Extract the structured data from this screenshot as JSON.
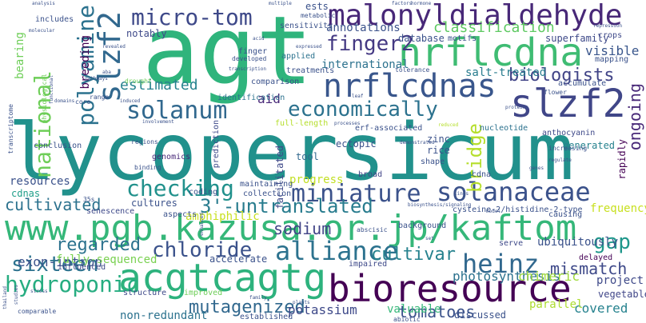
{
  "words": [
    {
      "text": "lycopersicum",
      "color": "#21918c"
    },
    {
      "text": "agt",
      "color": "#2fb47c"
    },
    {
      "text": "www.pgb.kazusa.or.jp/kaftom",
      "color": "#35b779"
    },
    {
      "text": "bioresource",
      "color": "#440154"
    },
    {
      "text": "malonyldialdehyde",
      "color": "#482878"
    },
    {
      "text": "nrflcdna",
      "color": "#3fbc73"
    },
    {
      "text": "acgtcagtg",
      "color": "#2db27d"
    },
    {
      "text": "nrflcdnas",
      "color": "#39568c"
    },
    {
      "text": "slzf2",
      "color": "#31688e"
    },
    {
      "text": "slzf2",
      "color": "#404688"
    },
    {
      "text": "miniature",
      "color": "#3b528b"
    },
    {
      "text": "solanaceae",
      "color": "#3b528b"
    },
    {
      "text": "solanum",
      "color": "#31688e"
    },
    {
      "text": "economically",
      "color": "#2c728e"
    },
    {
      "text": "checking",
      "color": "#21918c"
    },
    {
      "text": "heinz",
      "color": "#31688e"
    },
    {
      "text": "hydroponic",
      "color": "#27ad81"
    },
    {
      "text": "alliance",
      "color": "#2c728e"
    },
    {
      "text": "chloride",
      "color": "#3b528b"
    },
    {
      "text": "sixteen",
      "color": "#2c728e"
    },
    {
      "text": "micro-tom",
      "color": "#3e4989"
    },
    {
      "text": "finger2",
      "color": "#443983"
    },
    {
      "text": "polyamine",
      "color": "#2c728e"
    },
    {
      "text": "national",
      "color": "#6ece58"
    },
    {
      "text": "cultivated",
      "color": "#2c728e"
    },
    {
      "text": "3'-untranslated",
      "color": "#287c8e"
    },
    {
      "text": "mutagenized",
      "color": "#31688e"
    },
    {
      "text": "regarded",
      "color": "#2c728e"
    },
    {
      "text": "sodium",
      "color": "#414487"
    },
    {
      "text": "cultivar",
      "color": "#26828e"
    },
    {
      "text": "gap",
      "color": "#1f978b"
    },
    {
      "text": "mismatch",
      "color": "#3e4989"
    },
    {
      "text": "bridge",
      "color": "#b5de2b"
    },
    {
      "text": "ongoing",
      "color": "#482878"
    },
    {
      "text": "biologists",
      "color": "#414487"
    },
    {
      "text": "classification",
      "color": "#5ec962"
    },
    {
      "text": "annotations",
      "color": "#3b528b"
    },
    {
      "text": "estimated",
      "color": "#26828e"
    },
    {
      "text": "aid",
      "color": "#482878"
    },
    {
      "text": "exon-intron",
      "color": "#3b528b"
    },
    {
      "text": "tomatoes",
      "color": "#3b528b"
    },
    {
      "text": "potassium",
      "color": "#3e4989"
    },
    {
      "text": "covered",
      "color": "#26828e"
    },
    {
      "text": "progress",
      "color": "#c2df23"
    },
    {
      "text": "photosynthesis",
      "color": "#2c728e"
    },
    {
      "text": "chimeric",
      "color": "#9fda3a"
    },
    {
      "text": "project",
      "color": "#3e4989"
    },
    {
      "text": "vegetable",
      "color": "#404688"
    },
    {
      "text": "frequency",
      "color": "#c8e020"
    },
    {
      "text": "ubiquitously",
      "color": "#3b528b"
    },
    {
      "text": "fully-sequenced",
      "color": "#7ad151"
    },
    {
      "text": "non-redundant",
      "color": "#2c728e"
    },
    {
      "text": "valuable",
      "color": "#35b779"
    },
    {
      "text": "parallel",
      "color": "#addc30"
    },
    {
      "text": "accelerate",
      "color": "#3b528b"
    },
    {
      "text": "amphiphilic",
      "color": "#c8e020"
    },
    {
      "text": "cultures",
      "color": "#3b528b"
    },
    {
      "text": "resources",
      "color": "#3b528b"
    },
    {
      "text": "cdnas",
      "color": "#1f9e89"
    },
    {
      "text": "international",
      "color": "#2c728e"
    },
    {
      "text": "salt-treated",
      "color": "#287c8e"
    },
    {
      "text": "database",
      "color": "#3b528b"
    },
    {
      "text": "superfamily",
      "color": "#3e4989"
    },
    {
      "text": "visible",
      "color": "#39568c"
    },
    {
      "text": "breeding",
      "color": "#440154"
    },
    {
      "text": "bearing",
      "color": "#6ece58"
    },
    {
      "text": "notably",
      "color": "#3e4989"
    },
    {
      "text": "ests",
      "color": "#3b528b"
    },
    {
      "text": "tool",
      "color": "#31688e"
    },
    {
      "text": "cysteine-2/histidine-2-type",
      "color": "#3b528b"
    },
    {
      "text": "generated",
      "color": "#26828e"
    },
    {
      "text": "rapidly",
      "color": "#440154"
    },
    {
      "text": "facilitated",
      "color": "#3e4989"
    },
    {
      "text": "full-length",
      "color": "#b5de2b"
    },
    {
      "text": "erf-associated",
      "color": "#3b528b"
    },
    {
      "text": "nucleotide",
      "color": "#2c728e"
    },
    {
      "text": "anthocyanin",
      "color": "#3e4989"
    },
    {
      "text": "genomics",
      "color": "#482878"
    },
    {
      "text": "prediction",
      "color": "#3e4989"
    },
    {
      "text": "ectopic",
      "color": "#3b528b"
    },
    {
      "text": "zinc",
      "color": "#3b528b"
    },
    {
      "text": "rice",
      "color": "#3b528b"
    },
    {
      "text": "shape",
      "color": "#3b528b"
    },
    {
      "text": "broad",
      "color": "#414487"
    },
    {
      "text": "coding",
      "color": "#3b528b"
    },
    {
      "text": "aspects",
      "color": "#3b528b"
    },
    {
      "text": "senescence",
      "color": "#3e4989"
    },
    {
      "text": "maintaining",
      "color": "#3b528b"
    },
    {
      "text": "collection",
      "color": "#3b528b"
    },
    {
      "text": "structure",
      "color": "#3e4989"
    },
    {
      "text": "improved",
      "color": "#6ece58"
    },
    {
      "text": "established",
      "color": "#3b528b"
    },
    {
      "text": "abiotic",
      "color": "#3b528b"
    },
    {
      "text": "discussed",
      "color": "#3b528b"
    },
    {
      "text": "influenced",
      "color": "#3e4989"
    },
    {
      "text": "impaired",
      "color": "#3e4989"
    },
    {
      "text": "serve",
      "color": "#3e4989"
    },
    {
      "text": "delayed",
      "color": "#440154"
    },
    {
      "text": "causing",
      "color": "#3b528b"
    },
    {
      "text": "background",
      "color": "#3b528b"
    },
    {
      "text": "abscisic",
      "color": "#3b528b"
    },
    {
      "text": "identification",
      "color": "#2c728e"
    },
    {
      "text": "comparison",
      "color": "#3b528b"
    },
    {
      "text": "treatments",
      "color": "#3b528b"
    },
    {
      "text": "sensitivity",
      "color": "#3b528b"
    },
    {
      "text": "metabolic",
      "color": "#3b528b"
    },
    {
      "text": "finger",
      "color": "#3b528b"
    },
    {
      "text": "developed",
      "color": "#3b528b"
    },
    {
      "text": "applied",
      "color": "#2c728e"
    },
    {
      "text": "tolerance",
      "color": "#3b528b"
    },
    {
      "text": "motifs",
      "color": "#3b528b"
    },
    {
      "text": "crops",
      "color": "#3e4989"
    },
    {
      "text": "mapping",
      "color": "#3b528b"
    },
    {
      "text": "accumulate",
      "color": "#3b528b"
    },
    {
      "text": "flower",
      "color": "#3b528b"
    },
    {
      "text": "increasing",
      "color": "#3b528b"
    },
    {
      "text": "regulate",
      "color": "#3b528b"
    },
    {
      "text": "includes",
      "color": "#3b528b"
    },
    {
      "text": "physiological",
      "color": "#6ece58"
    },
    {
      "text": "transcriptome",
      "color": "#3b528b"
    },
    {
      "text": "conclusion",
      "color": "#3b528b"
    },
    {
      "text": "regions",
      "color": "#3b528b"
    },
    {
      "text": "binding",
      "color": "#3b528b"
    },
    {
      "text": "drought",
      "color": "#6ece58"
    },
    {
      "text": "range",
      "color": "#3b528b"
    },
    {
      "text": "core",
      "color": "#3b528b"
    },
    {
      "text": "induced",
      "color": "#3b528b"
    },
    {
      "text": "involvement",
      "color": "#3b528b"
    },
    {
      "text": "revealed",
      "color": "#3b528b"
    },
    {
      "text": "aba",
      "color": "#3b528b"
    },
    {
      "text": "35s",
      "color": "#3b528b"
    },
    {
      "text": "cdna",
      "color": "#3b528b"
    },
    {
      "text": "demonstrated",
      "color": "#3b528b"
    },
    {
      "text": "processes",
      "color": "#3b528b"
    },
    {
      "text": "reduced",
      "color": "#b5de2b"
    },
    {
      "text": "model",
      "color": "#3b528b"
    },
    {
      "text": "lines",
      "color": "#3b528b"
    },
    {
      "text": "set",
      "color": "#3b528b"
    },
    {
      "text": "family",
      "color": "#3b528b"
    },
    {
      "text": "stress",
      "color": "#3b528b"
    },
    {
      "text": "thailand",
      "color": "#3b528b"
    },
    {
      "text": "comparable",
      "color": "#3b528b"
    },
    {
      "text": "biosynthesis/signaling",
      "color": "#3b528b"
    },
    {
      "text": "enhanced",
      "color": "#3b528b"
    },
    {
      "text": "functional",
      "color": "#3b528b"
    },
    {
      "text": "domains",
      "color": "#3b528b"
    },
    {
      "text": "pathways",
      "color": "#3b528b"
    },
    {
      "text": "molecular",
      "color": "#3b528b"
    },
    {
      "text": "analysis",
      "color": "#3b528b"
    },
    {
      "text": "multiple",
      "color": "#3b528b"
    },
    {
      "text": "factors",
      "color": "#3b528b"
    },
    {
      "text": "hormone",
      "color": "#3b528b"
    },
    {
      "text": "repression",
      "color": "#3b528b"
    },
    {
      "text": "acid",
      "color": "#3b528b"
    },
    {
      "text": "expressed",
      "color": "#3b528b"
    },
    {
      "text": "transcription",
      "color": "#3b528b"
    },
    {
      "text": "leaf",
      "color": "#3b528b"
    },
    {
      "text": "proteins",
      "color": "#3b528b"
    },
    {
      "text": "genes",
      "color": "#3b528b"
    },
    {
      "text": "studies",
      "color": "#3b528b"
    },
    {
      "text": "plants",
      "color": "#3b528b"
    }
  ]
}
